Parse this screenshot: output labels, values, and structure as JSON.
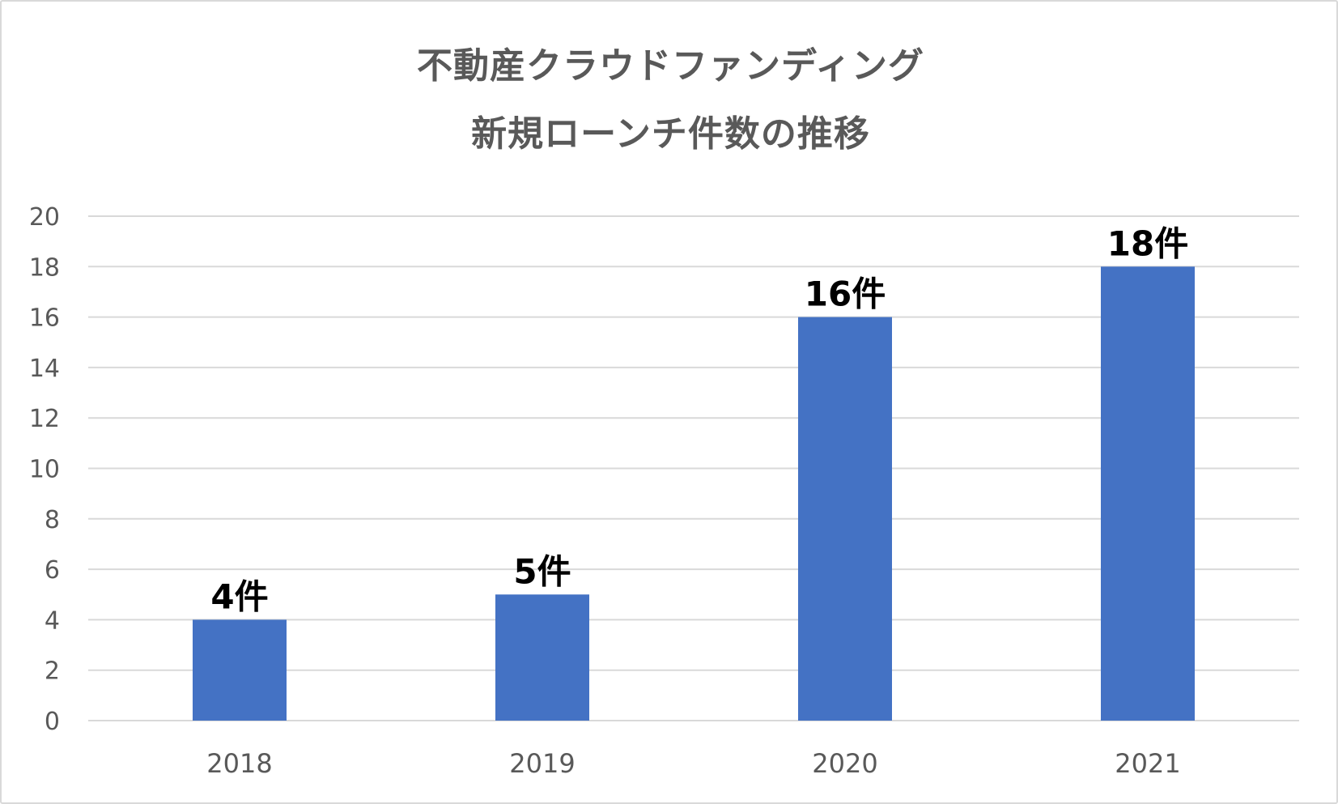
{
  "chart_data": {
    "type": "bar",
    "title_lines": [
      "不動産クラウドファンディング",
      "新規ローンチ件数の推移"
    ],
    "categories": [
      "2018",
      "2019",
      "2020",
      "2021"
    ],
    "values": [
      4,
      5,
      16,
      18
    ],
    "data_labels": [
      "4件",
      "5件",
      "16件",
      "18件"
    ],
    "y_ticks": [
      "0",
      "2",
      "4",
      "6",
      "8",
      "10",
      "12",
      "14",
      "16",
      "18",
      "20"
    ],
    "ylim": [
      0,
      20
    ],
    "grid": true,
    "legend": "none",
    "xlabel": "",
    "ylabel": "",
    "colors": {
      "bar": "#4472c4",
      "grid": "#d9d9d9",
      "tick_text": "#595959",
      "title_text": "#595959",
      "data_label_text": "#000000",
      "frame": "#d9d9d9"
    }
  }
}
